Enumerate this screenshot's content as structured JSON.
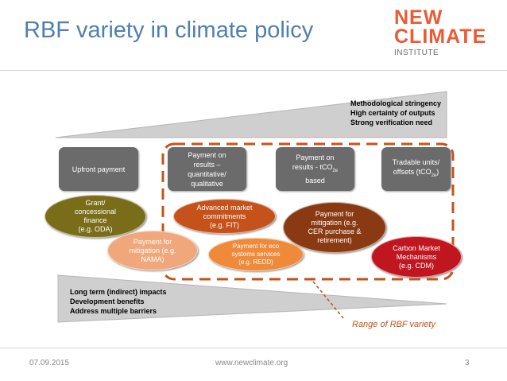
{
  "slide": {
    "title": "RBF variety in climate policy",
    "logo": {
      "line1": "NEW",
      "line2": "CLIMATE",
      "line3": "INSTITUTE"
    },
    "top_triangle": [
      "Methodological stringency",
      "High certainty of outputs",
      "Strong verification need"
    ],
    "bottom_triangle": [
      "Long term (indirect) impacts",
      "Development benefits",
      "Address multiple barriers"
    ],
    "boxes": {
      "upfront": "Upfront payment",
      "results": [
        "Payment on",
        "results –",
        "quantitative/",
        "qualitative"
      ],
      "tco2e": {
        "line1": "Payment on",
        "line2_pre": "results  - tCO",
        "line2_sub": "2e",
        "line3": "based"
      },
      "tradable": {
        "line1": "Tradable units/",
        "line2_pre": "offsets (tCO",
        "line2_sub": "2e",
        "line2_post": ")"
      }
    },
    "ellipses": {
      "grant": [
        "Grant/",
        "concessional",
        "finance",
        "(e.g. ODA)"
      ],
      "nama": [
        "Payment for",
        "mitigation (e.g.",
        "NAMA)"
      ],
      "amc": [
        "Advanced market",
        "commitments",
        "(e.g. FIT)"
      ],
      "redd": [
        "Payment for eco",
        "systems services",
        "(e.g. REDD)"
      ],
      "cer": [
        "Payment for",
        "mitigation (e.g.",
        "CER purchase &",
        "retirement)"
      ],
      "cdm": [
        "Carbon Market",
        "Mechanisms",
        "(e.g. CDM)"
      ]
    },
    "range_label": "Range of RBF variety",
    "footer": {
      "date": "07.09.2015",
      "url": "www.newclimate.org",
      "page": "3"
    },
    "colors": {
      "title": "#4f7fb0",
      "accent": "#ea5b35",
      "box": "#6b6b6b",
      "triangle": "#cfcfcf",
      "grant": "#7a6d1a",
      "nama": "#f0a77b",
      "amc": "#c5521a",
      "redd": "#ef8a3a",
      "cer": "#8a3a12",
      "cdm": "#c0161f",
      "dashed": "#c5521a"
    }
  }
}
